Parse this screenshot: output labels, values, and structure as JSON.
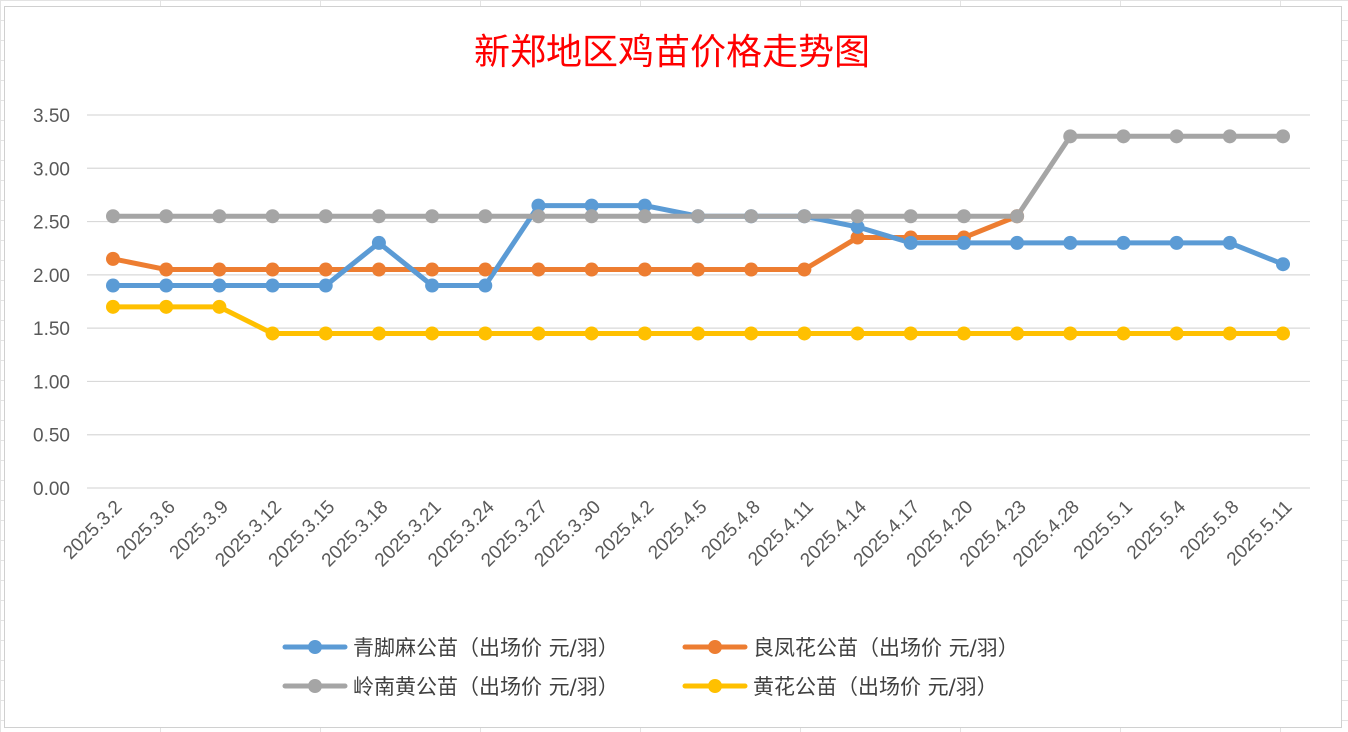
{
  "chart_data": {
    "type": "line",
    "title": "新郑地区鸡苗价格走势图",
    "xlabel": "",
    "ylabel": "",
    "ylim": [
      0,
      3.5
    ],
    "ytick_labels": [
      "0.00",
      "0.50",
      "1.00",
      "1.50",
      "2.00",
      "2.50",
      "3.00",
      "3.50"
    ],
    "grid": "horizontal",
    "legend_position": "bottom",
    "categories": [
      "2025.3.2",
      "2025.3.6",
      "2025.3.9",
      "2025.3.12",
      "2025.3.15",
      "2025.3.18",
      "2025.3.21",
      "2025.3.24",
      "2025.3.27",
      "2025.3.30",
      "2025.4.2",
      "2025.4.5",
      "2025.4.8",
      "2025.4.11",
      "2025.4.14",
      "2025.4.17",
      "2025.4.20",
      "2025.4.23",
      "2025.4.28",
      "2025.5.1",
      "2025.5.4",
      "2025.5.8",
      "2025.5.11"
    ],
    "series": [
      {
        "name": "青脚麻公苗（出场价 元/羽）",
        "color": "#5b9bd5",
        "values": [
          1.9,
          1.9,
          1.9,
          1.9,
          1.9,
          2.3,
          1.9,
          1.9,
          2.65,
          2.65,
          2.65,
          2.55,
          2.55,
          2.55,
          2.45,
          2.3,
          2.3,
          2.3,
          2.3,
          2.3,
          2.3,
          2.3,
          2.1
        ]
      },
      {
        "name": "良凤花公苗（出场价 元/羽）",
        "color": "#ed7d31",
        "values": [
          2.15,
          2.05,
          2.05,
          2.05,
          2.05,
          2.05,
          2.05,
          2.05,
          2.05,
          2.05,
          2.05,
          2.05,
          2.05,
          2.05,
          2.35,
          2.35,
          2.35,
          2.55,
          null,
          null,
          null,
          null,
          null
        ]
      },
      {
        "name": "岭南黄公苗（出场价 元/羽）",
        "color": "#a5a5a5",
        "values": [
          2.55,
          2.55,
          2.55,
          2.55,
          2.55,
          2.55,
          2.55,
          2.55,
          2.55,
          2.55,
          2.55,
          2.55,
          2.55,
          2.55,
          2.55,
          2.55,
          2.55,
          2.55,
          3.3,
          3.3,
          3.3,
          3.3,
          3.3
        ]
      },
      {
        "name": "黄花公苗（出场价 元/羽）",
        "color": "#ffc000",
        "values": [
          1.7,
          1.7,
          1.7,
          1.45,
          1.45,
          1.45,
          1.45,
          1.45,
          1.45,
          1.45,
          1.45,
          1.45,
          1.45,
          1.45,
          1.45,
          1.45,
          1.45,
          1.45,
          1.45,
          1.45,
          1.45,
          1.45,
          1.45
        ]
      }
    ]
  }
}
